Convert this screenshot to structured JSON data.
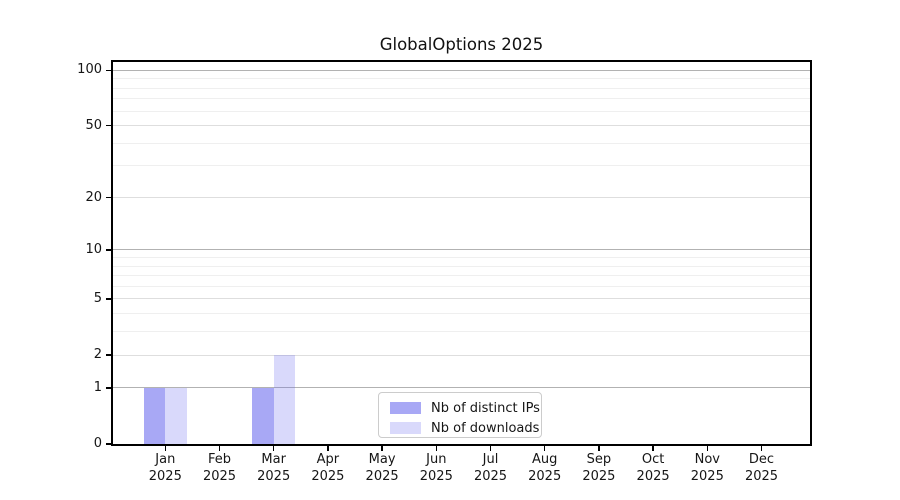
{
  "chart_data": {
    "type": "bar",
    "title": "GlobalOptions 2025",
    "categories": [
      "Jan 2025",
      "Feb 2025",
      "Mar 2025",
      "Apr 2025",
      "May 2025",
      "Jun 2025",
      "Jul 2025",
      "Aug 2025",
      "Sep 2025",
      "Oct 2025",
      "Nov 2025",
      "Dec 2025"
    ],
    "series": [
      {
        "name": "Nb of distinct IPs",
        "color": "rgba(102,102,238,0.57)",
        "values": [
          1,
          0,
          1,
          0,
          0,
          0,
          0,
          0,
          0,
          0,
          0,
          0
        ]
      },
      {
        "name": "Nb of downloads",
        "color": "rgba(102,102,238,0.25)",
        "values": [
          1,
          0,
          2,
          0,
          0,
          0,
          0,
          0,
          0,
          0,
          0,
          0
        ]
      }
    ],
    "xlabel": "",
    "ylabel": "",
    "yscale": "log1p",
    "ylim": [
      0,
      111
    ],
    "yticks": [
      0,
      1,
      2,
      5,
      10,
      20,
      50,
      100
    ],
    "minor_yticks": [
      3,
      4,
      6,
      7,
      8,
      9,
      30,
      40,
      60,
      70,
      80,
      90
    ],
    "grid": "horizontal",
    "legend_position": "lower center",
    "colors": {
      "axis": "#000000",
      "grid_decade": "#b2b2b2",
      "grid_major": "#dedede",
      "grid_minor": "#efefef",
      "background": "#ffffff",
      "text": "#161616"
    }
  }
}
